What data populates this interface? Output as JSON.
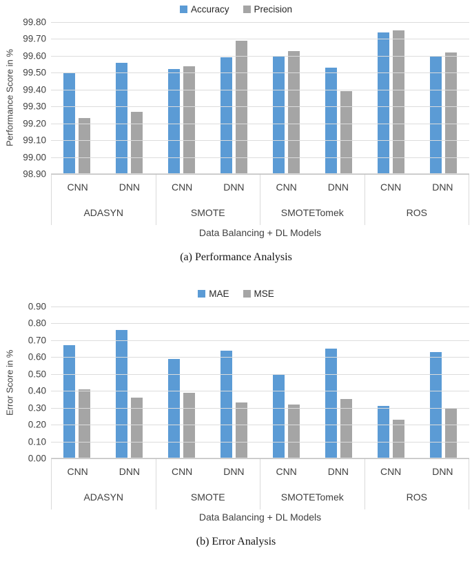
{
  "colors": {
    "series_blue": "#5B9BD5",
    "series_gray": "#A5A5A5",
    "gridline": "#DCDCDC",
    "axis_text": "#3F3F3F"
  },
  "chart_data": [
    {
      "type": "bar",
      "caption": "(a) Performance Analysis",
      "xlabel": "Data Balancing + DL Models",
      "ylabel": "Performance Score in %",
      "ylim": [
        98.9,
        99.8
      ],
      "ytick_step": 0.1,
      "ytick_decimals": 2,
      "grid": true,
      "legend_position": "top",
      "groups": [
        "ADASYN",
        "SMOTE",
        "SMOTETomek",
        "ROS"
      ],
      "subcategories": [
        "CNN",
        "DNN"
      ],
      "series": [
        {
          "name": "Accuracy",
          "color": "#5B9BD5",
          "values": [
            99.5,
            99.56,
            99.52,
            99.59,
            99.6,
            99.53,
            99.74,
            99.6
          ]
        },
        {
          "name": "Precision",
          "color": "#A5A5A5",
          "values": [
            99.23,
            99.27,
            99.54,
            99.69,
            99.63,
            99.39,
            99.75,
            99.62
          ]
        }
      ]
    },
    {
      "type": "bar",
      "caption": "(b) Error Analysis",
      "xlabel": "Data Balancing + DL Models",
      "ylabel": "Error Score in %",
      "ylim": [
        0.0,
        0.9
      ],
      "ytick_step": 0.1,
      "ytick_decimals": 2,
      "grid": true,
      "legend_position": "top",
      "groups": [
        "ADASYN",
        "SMOTE",
        "SMOTETomek",
        "ROS"
      ],
      "subcategories": [
        "CNN",
        "DNN"
      ],
      "series": [
        {
          "name": "MAE",
          "color": "#5B9BD5",
          "values": [
            0.67,
            0.76,
            0.59,
            0.64,
            0.5,
            0.65,
            0.31,
            0.63
          ]
        },
        {
          "name": "MSE",
          "color": "#A5A5A5",
          "values": [
            0.41,
            0.36,
            0.39,
            0.33,
            0.32,
            0.35,
            0.23,
            0.3
          ]
        }
      ]
    }
  ]
}
